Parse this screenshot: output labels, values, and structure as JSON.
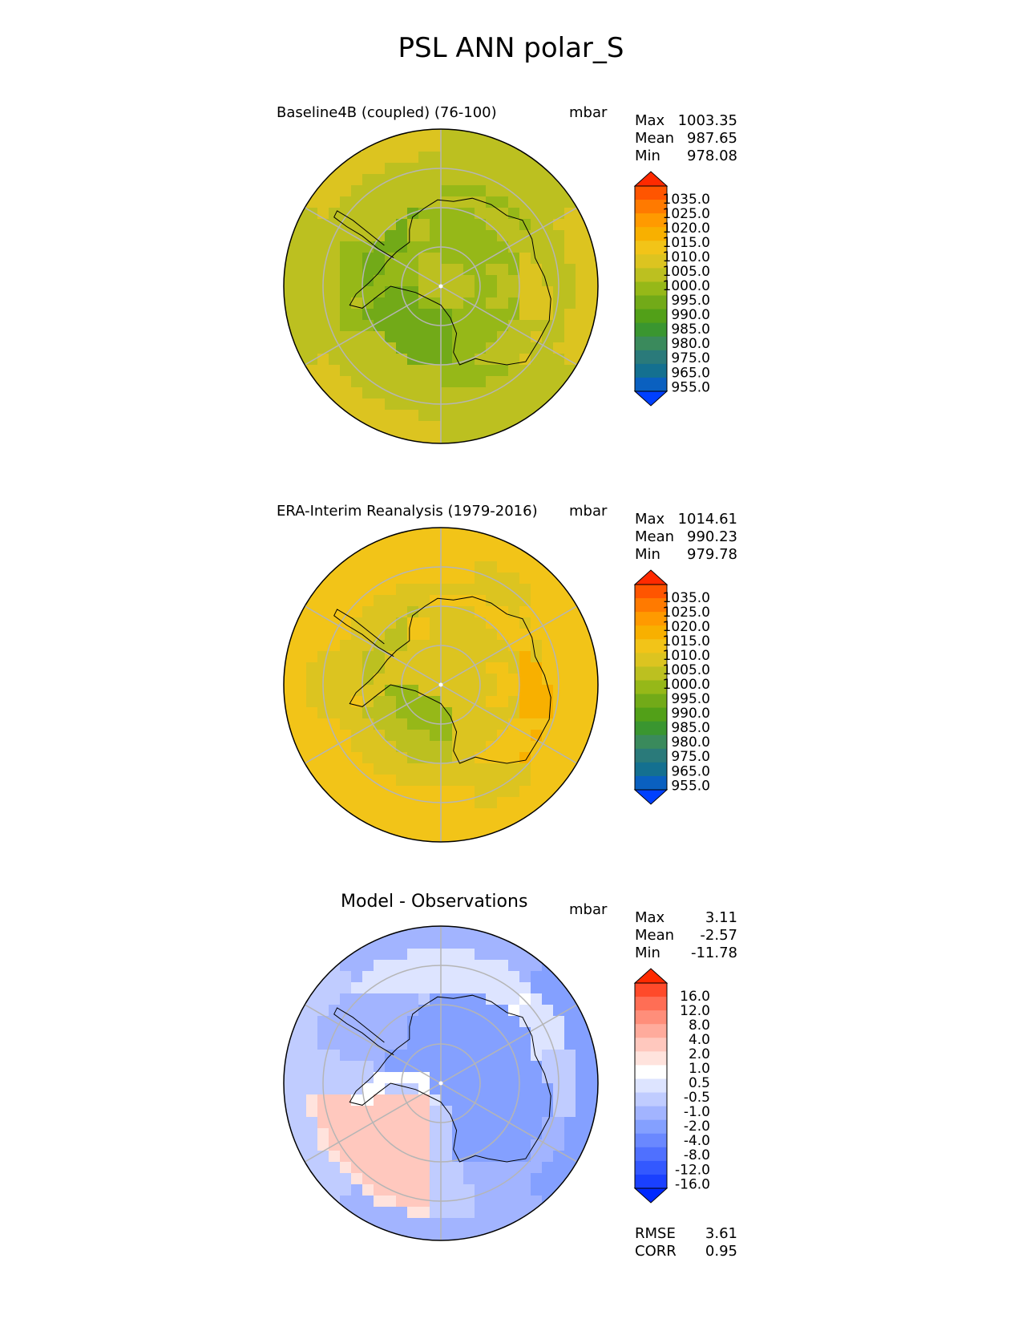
{
  "title": "PSL ANN polar_S",
  "chart_data": [
    {
      "type": "heatmap",
      "title": "Baseline4B (coupled) (76-100)",
      "units": "mbar",
      "stats": [
        [
          "Max",
          "1003.35"
        ],
        [
          "Mean",
          "987.65"
        ],
        [
          "Min",
          "978.08"
        ]
      ],
      "colorbar_labels": [
        "1035.0",
        "1025.0",
        "1020.0",
        "1015.0",
        "1010.0",
        "1005.0",
        "1000.0",
        "995.0",
        "990.0",
        "985.0",
        "980.0",
        "975.0",
        "965.0",
        "955.0"
      ],
      "colors": [
        "#ff2a00",
        "#ff5500",
        "#ff7a00",
        "#ff9a00",
        "#f8b000",
        "#f2c418",
        "#dcc420",
        "#bcc020",
        "#96b818",
        "#72aa18",
        "#52a018",
        "#3a9630",
        "#3a8a5c",
        "#2a7a7a",
        "#147090",
        "#0a60c0",
        "#0040ff"
      ],
      "field": {
        "center": 1001,
        "ring": [
          -10,
          -13,
          -12,
          -6,
          -3,
          -1
        ],
        "continent_boost": 2
      }
    },
    {
      "type": "heatmap",
      "title": "ERA-Interim Reanalysis (1979-2016)",
      "units": "mbar",
      "stats": [
        [
          "Max",
          "1014.61"
        ],
        [
          "Mean",
          "990.23"
        ],
        [
          "Min",
          "979.78"
        ]
      ],
      "colorbar_labels": [
        "1035.0",
        "1025.0",
        "1020.0",
        "1015.0",
        "1010.0",
        "1005.0",
        "1000.0",
        "995.0",
        "990.0",
        "985.0",
        "980.0",
        "975.0",
        "965.0",
        "955.0"
      ],
      "colors": [
        "#ff2a00",
        "#ff5500",
        "#ff7a00",
        "#ff9a00",
        "#f8b000",
        "#f2c418",
        "#dcc420",
        "#bcc020",
        "#96b818",
        "#72aa18",
        "#52a018",
        "#3a9630",
        "#3a8a5c",
        "#2a7a7a",
        "#147090",
        "#0a60c0",
        "#0040ff"
      ],
      "field": {
        "center": 1008,
        "ring": [
          -14,
          -15,
          -12,
          -6,
          -2,
          0
        ],
        "continent_boost": 5
      }
    },
    {
      "type": "heatmap",
      "title": "Model - Observations",
      "units": "mbar",
      "stats": [
        [
          "Max",
          "3.11"
        ],
        [
          "Mean",
          "-2.57"
        ],
        [
          "Min",
          "-11.78"
        ]
      ],
      "colorbar_labels": [
        "16.0",
        "12.0",
        "8.0",
        "4.0",
        "2.0",
        "1.0",
        "0.5",
        "-0.5",
        "-1.0",
        "-2.0",
        "-4.0",
        "-8.0",
        "-12.0",
        "-16.0"
      ],
      "colors": [
        "#ff2a00",
        "#ff4a2a",
        "#ff6e55",
        "#ff8e7a",
        "#ffab9c",
        "#ffc8be",
        "#ffe3dd",
        "#ffffff",
        "#dde4ff",
        "#c0ccff",
        "#a2b4ff",
        "#84a0ff",
        "#6a88ff",
        "#4f70ff",
        "#3358ff",
        "#1a40ff",
        "#0028ff"
      ],
      "rmse": "3.61",
      "corr": "0.95",
      "rmse_label": "RMSE",
      "corr_label": "CORR"
    }
  ]
}
